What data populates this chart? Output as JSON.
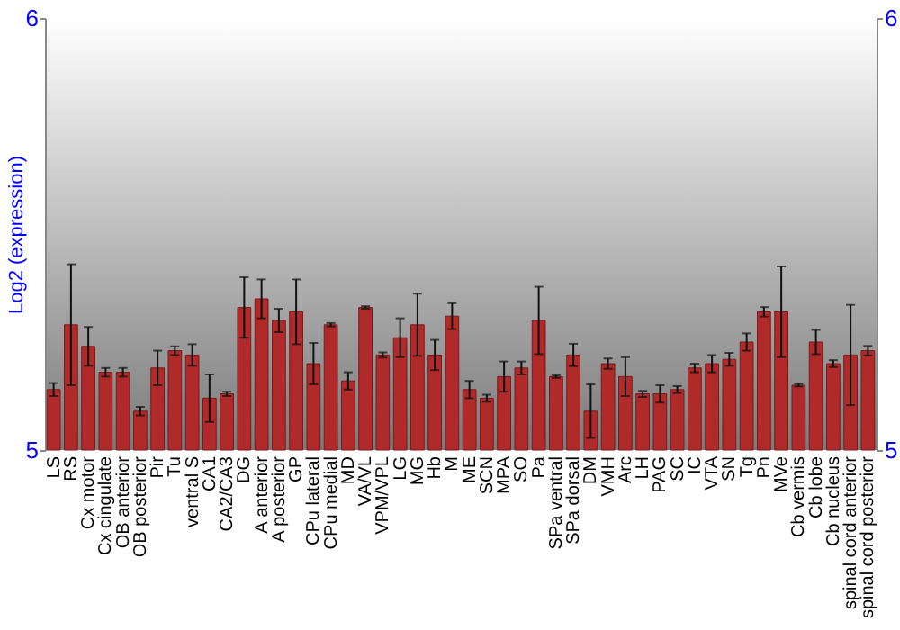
{
  "chart_data": {
    "type": "bar",
    "ylabel": "Log2 (expression)",
    "categories": [
      "LS",
      "RS",
      "Cx motor",
      "Cx cingulate",
      "OB anterior",
      "OB posterior",
      "Pir",
      "Tu",
      "ventral S",
      "CA1",
      "CA2/CA3",
      "DG",
      "A anterior",
      "A posterior",
      "GP",
      "CPu lateral",
      "CPu medial",
      "MD",
      "VA/VL",
      "VPM/VPL",
      "LG",
      "MG",
      "Hb",
      "M",
      "ME",
      "SCN",
      "MPA",
      "SO",
      "Pa",
      "SPa ventral",
      "SPa dorsal",
      "DM",
      "VMH",
      "Arc",
      "LH",
      "PAG",
      "SC",
      "IC",
      "VTA",
      "SN",
      "Tg",
      "Pn",
      "MVe",
      "Cb vermis",
      "Cb lobe",
      "Cb nucleus",
      "spinal cord anterior",
      "spinal cord posterior"
    ],
    "values": [
      5.14,
      5.29,
      5.24,
      5.18,
      5.18,
      5.09,
      5.19,
      5.23,
      5.22,
      5.12,
      5.13,
      5.33,
      5.35,
      5.3,
      5.32,
      5.2,
      5.29,
      5.16,
      5.33,
      5.22,
      5.26,
      5.29,
      5.22,
      5.31,
      5.14,
      5.12,
      5.17,
      5.19,
      5.3,
      5.17,
      5.22,
      5.09,
      5.2,
      5.17,
      5.13,
      5.13,
      5.14,
      5.19,
      5.2,
      5.21,
      5.25,
      5.32,
      5.32,
      5.15,
      5.25,
      5.2,
      5.22,
      5.23
    ],
    "errors": [
      0.015,
      0.14,
      0.045,
      0.01,
      0.01,
      0.01,
      0.04,
      0.01,
      0.025,
      0.055,
      0.005,
      0.07,
      0.045,
      0.027,
      0.075,
      0.048,
      0.004,
      0.02,
      0.003,
      0.006,
      0.045,
      0.072,
      0.035,
      0.03,
      0.02,
      0.008,
      0.035,
      0.015,
      0.078,
      0.003,
      0.026,
      0.062,
      0.012,
      0.045,
      0.007,
      0.02,
      0.008,
      0.01,
      0.02,
      0.015,
      0.02,
      0.011,
      0.105,
      0.003,
      0.028,
      0.008,
      0.116,
      0.011
    ],
    "color": "#b02a2a",
    "ylim": [
      5,
      6
    ],
    "yticks": [
      5,
      6
    ],
    "y2lim": [
      5,
      6
    ],
    "y2ticks": [
      5,
      6
    ],
    "grid": false
  }
}
